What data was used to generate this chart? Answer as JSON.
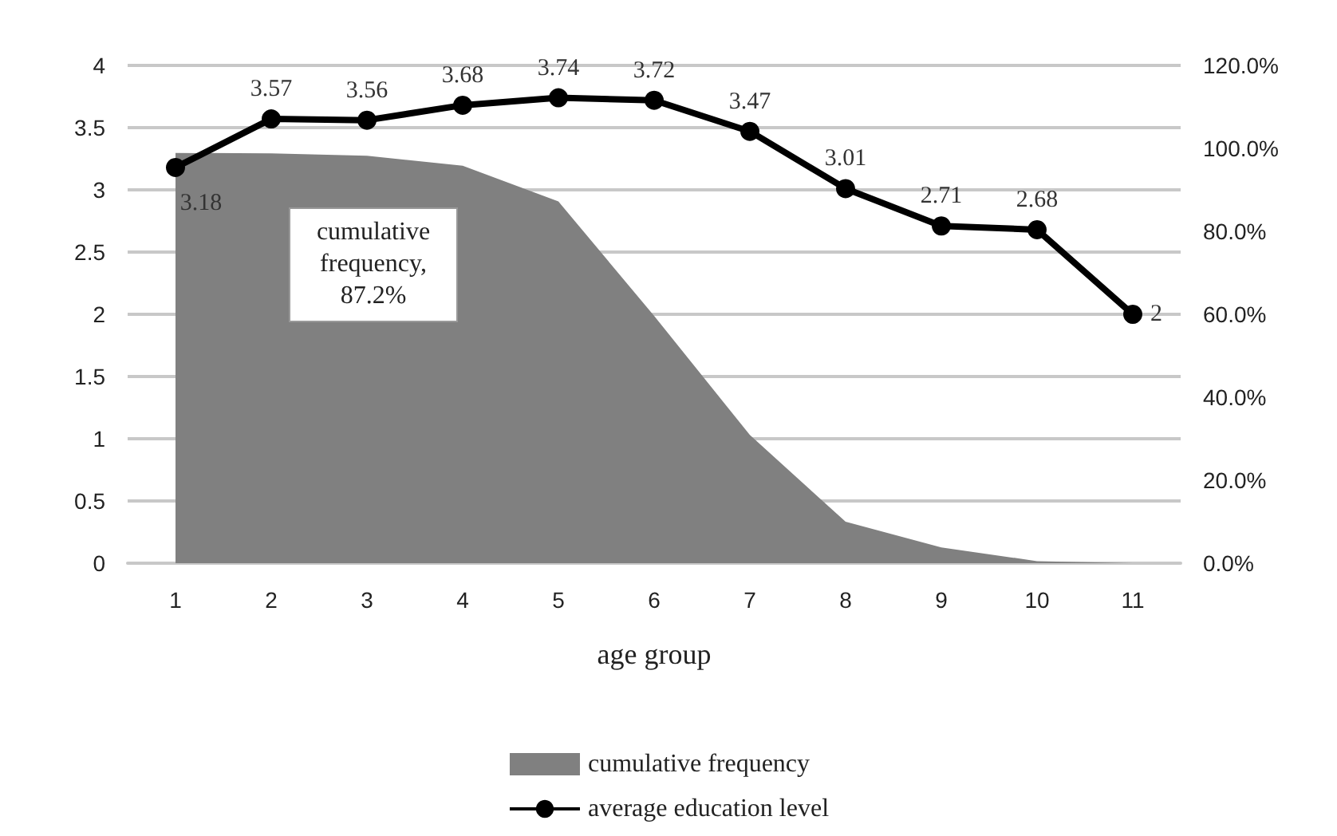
{
  "chart_data": {
    "type": "area",
    "xlabel": "age group",
    "categories": [
      "1",
      "2",
      "3",
      "4",
      "5",
      "6",
      "7",
      "8",
      "9",
      "10",
      "11"
    ],
    "series": [
      {
        "name": "cumulative frequency",
        "axis": "y2",
        "color": "#808080",
        "values": [
          98.9,
          98.8,
          98.2,
          95.8,
          87.2,
          59.6,
          30.9,
          10,
          3.8,
          0.5,
          0
        ]
      },
      {
        "name": "average education level",
        "type": "line",
        "color": "#000000",
        "marker": "circle",
        "data_labels": true,
        "values": [
          3.18,
          3.57,
          3.56,
          3.68,
          3.74,
          3.72,
          3.47,
          3.01,
          2.71,
          2.68,
          2
        ]
      }
    ],
    "ylim": [
      0,
      4
    ],
    "yticks": [
      0,
      0.5,
      1,
      1.5,
      2,
      2.5,
      3,
      3.5,
      4
    ],
    "y2lim": [
      0,
      120
    ],
    "y2ticks": [
      {
        "value": 0,
        "label": "0.0%"
      },
      {
        "value": 20,
        "label": "20.0%"
      },
      {
        "value": 40,
        "label": "40.0%"
      },
      {
        "value": 60,
        "label": "60.0%"
      },
      {
        "value": 80,
        "label": "80.0%"
      },
      {
        "value": 100,
        "label": "100.0%"
      },
      {
        "value": 120,
        "label": "120.0%"
      }
    ],
    "annotations": [
      "cumulative frequency, 87.2%"
    ],
    "grid": "y",
    "legend": "bottom"
  }
}
